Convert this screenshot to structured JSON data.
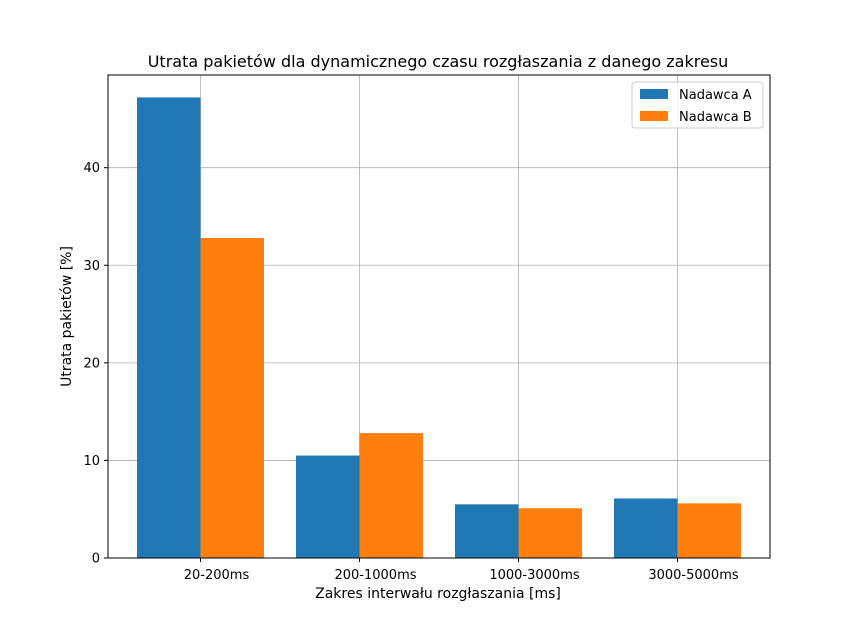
{
  "chart_data": {
    "type": "bar",
    "title": "Utrata pakietów dla dynamicznego czasu rozgłaszania z danego zakresu",
    "xlabel": "Zakres interwału rozgłaszania [ms]",
    "ylabel": "Utrata pakietów [%]",
    "categories": [
      "20-200ms",
      "200-1000ms",
      "1000-3000ms",
      "3000-5000ms"
    ],
    "series": [
      {
        "name": "Nadawca A",
        "color": "#1f77b4",
        "values": [
          47.2,
          10.5,
          5.5,
          6.1
        ]
      },
      {
        "name": "Nadawca B",
        "color": "#ff7f0e",
        "values": [
          32.8,
          12.8,
          5.1,
          5.6
        ]
      }
    ],
    "yticks": [
      0,
      10,
      20,
      30,
      40
    ],
    "ylim": [
      0,
      49.5
    ],
    "grid": true,
    "legend_position": "top-right"
  }
}
